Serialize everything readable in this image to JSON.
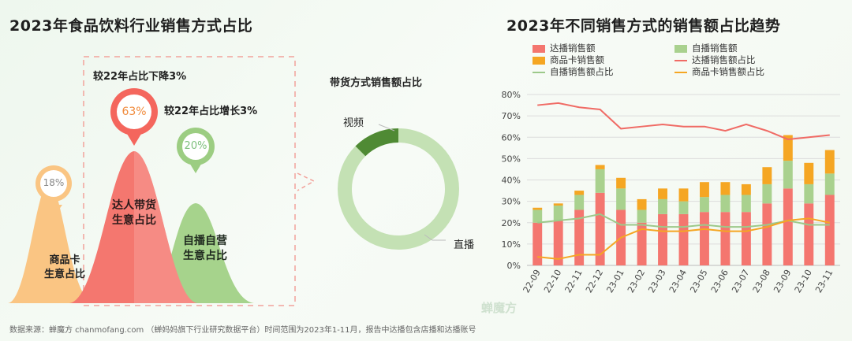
{
  "left_title": "2023年食品饮料行业销售方式占比",
  "right_title": "2023年不同销售方式的销售额占比趋势",
  "footer": "数据来源：蝉魔方 chanmofang.com （蝉妈妈旗下行业研究数据平台）时间范围为2023年1-11月，报告中达播包含店播和达播账号",
  "watermark": "蝉魔方",
  "mountains": {
    "shangpinka": {
      "pct": "18%",
      "label1": "商品卡",
      "label2": "生意占比",
      "value": 18
    },
    "daren": {
      "pct": "63%",
      "label1": "达人带货",
      "label2": "生意占比",
      "value": 63,
      "note": "较22年占比下降3%"
    },
    "zibo": {
      "pct": "20%",
      "label1": "自播自营",
      "label2": "生意占比",
      "value": 20,
      "note": "较22年占比增长3%"
    }
  },
  "donut": {
    "title": "带货方式销售额占比",
    "video_label": "视频",
    "live_label": "直播"
  },
  "chart_data": {
    "type": "bar",
    "categories": [
      "22-09",
      "22-10",
      "22-11",
      "22-12",
      "23-01",
      "23-02",
      "23-03",
      "23-04",
      "23-05",
      "23-06",
      "23-07",
      "23-08",
      "23-09",
      "23-10",
      "23-11"
    ],
    "ylim": [
      0,
      80
    ],
    "ytick_labels": [
      "0%",
      "10%",
      "20%",
      "30%",
      "40%",
      "50%",
      "60%",
      "70%",
      "80%"
    ],
    "grid": true,
    "legend_placement": "top",
    "series": [
      {
        "name": "达播销售额",
        "kind": "bar",
        "color": "#f4766f",
        "values": [
          20,
          21,
          26,
          34,
          26,
          20,
          24,
          24,
          25,
          25,
          25,
          29,
          36,
          29,
          33
        ]
      },
      {
        "name": "自播销售额",
        "kind": "bar",
        "color": "#a9d18e",
        "values": [
          6,
          7,
          7,
          11,
          10,
          6,
          7,
          6,
          7,
          8,
          8,
          9,
          13,
          9,
          10
        ]
      },
      {
        "name": "商品卡销售额",
        "kind": "bar",
        "color": "#f5a623",
        "values": [
          1,
          1,
          2,
          2,
          5,
          5,
          5,
          6,
          7,
          6,
          5,
          8,
          12,
          10,
          11
        ]
      },
      {
        "name": "达播销售额占比",
        "kind": "line",
        "color": "#f06b65",
        "values": [
          75,
          76,
          74,
          73,
          64,
          65,
          66,
          65,
          65,
          63,
          66,
          63,
          59,
          60,
          61
        ]
      },
      {
        "name": "自播销售额占比",
        "kind": "line",
        "color": "#9cc98a",
        "values": [
          20,
          21,
          22,
          24,
          19,
          19,
          18,
          18,
          19,
          18,
          18,
          19,
          21,
          19,
          19
        ]
      },
      {
        "name": "商品卡销售额占比",
        "kind": "line",
        "color": "#f5a623",
        "values": [
          4,
          3,
          5,
          5,
          13,
          17,
          16,
          16,
          17,
          16,
          16,
          18,
          21,
          22,
          20
        ]
      }
    ]
  }
}
